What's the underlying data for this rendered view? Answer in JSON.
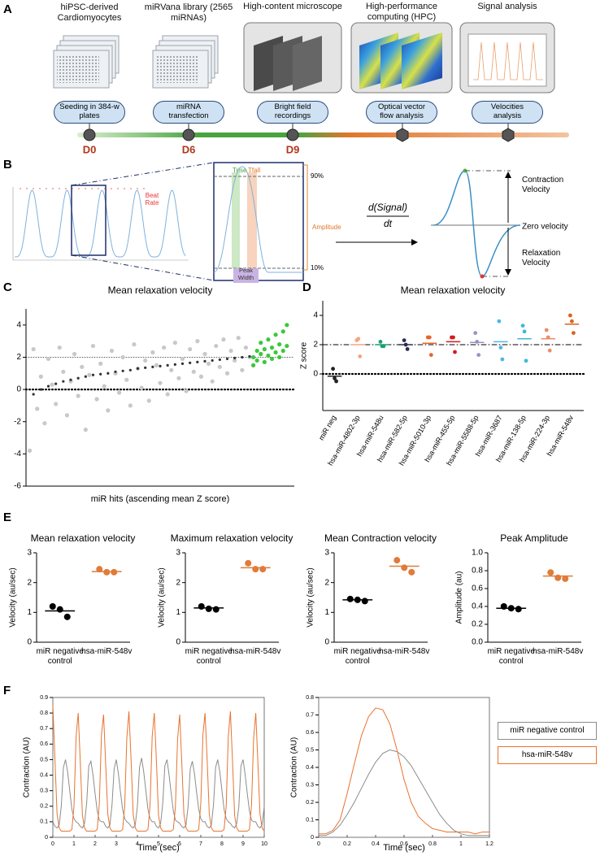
{
  "panel_a": {
    "label": "A",
    "steps": [
      "hiPSC-derived Cardiomyocytes",
      "miRVana library (2565 miRNAs)",
      "High-content microscope",
      "High-performance computing (HPC)",
      "Signal analysis"
    ],
    "actions": [
      "Seeding in 384-w plates",
      "miRNA transfection",
      "Bright field recordings",
      "Optical vector flow analysis",
      "Velocities analysis"
    ],
    "days": [
      "D0",
      "D6",
      "D9"
    ]
  },
  "panel_b": {
    "label": "B",
    "beat_rate": "Beat Rate",
    "trise": "Trise",
    "tfall": "Tfall",
    "upper_level": "90%",
    "lower_level": "10%",
    "amplitude": "Amplitude",
    "peak_width": "Peak Width",
    "derivative_numerator": "d(Signal)",
    "derivative_denominator": "dt",
    "contraction_velocity": "Contraction Velocity",
    "zero_velocity": "Zero velocity",
    "relaxation_velocity": "Relaxation Velocity"
  },
  "chart_data": [
    {
      "type": "scatter",
      "panel_label": "C",
      "title": "Mean relaxation velocity",
      "xlabel": "miR hits (ascending mean Z score)",
      "xlim": [
        0,
        72
      ],
      "ylim": [
        -6,
        5
      ],
      "yticks": [
        -6,
        -4,
        -2,
        0,
        2,
        4
      ],
      "hlines": [
        {
          "value": 0,
          "style": "dotted"
        },
        {
          "value": 2,
          "style": "fine-dotted"
        }
      ],
      "series": [
        {
          "color": "#c8c8c8",
          "x": [
            1,
            2,
            3,
            4,
            5,
            6,
            7,
            8,
            9,
            10,
            11,
            12,
            13,
            14,
            15,
            16,
            17,
            18,
            19,
            20,
            21,
            22,
            23,
            24,
            25,
            26,
            27,
            28,
            29,
            30,
            31,
            32,
            33,
            34,
            35,
            36,
            37,
            38,
            39,
            40,
            41,
            42,
            43,
            44,
            45,
            46,
            47,
            48,
            49,
            50,
            51,
            52,
            53,
            54,
            55,
            56,
            57,
            58,
            59,
            60
          ],
          "values": [
            -3.8,
            2.5,
            -1.2,
            0.8,
            -2.1,
            1.9,
            0.3,
            -0.9,
            2.6,
            1.1,
            -1.6,
            0.5,
            2.2,
            -0.4,
            1.4,
            -2.5,
            0.9,
            2.7,
            -0.6,
            1.6,
            0.2,
            -1.3,
            2.4,
            1.0,
            -0.2,
            2.0,
            0.6,
            -1.0,
            2.8,
            1.3,
            0.1,
            1.8,
            -0.7,
            2.3,
            1.5,
            0.4,
            2.6,
            -0.3,
            1.2,
            2.9,
            0.7,
            1.9,
            -0.1,
            2.5,
            1.1,
            3.0,
            0.8,
            2.2,
            1.6,
            0.5,
            2.7,
            1.4,
            3.1,
            1.0,
            2.4,
            1.8,
            3.2,
            1.2,
            2.6,
            2.0
          ]
        },
        {
          "color": "#333333",
          "x": [
            2,
            4,
            6,
            8,
            10,
            12,
            14,
            16,
            18,
            20,
            22,
            24,
            26,
            28,
            30,
            32,
            34,
            36,
            38,
            40,
            42,
            44,
            46,
            48,
            50,
            52,
            54,
            56,
            58,
            60
          ],
          "values": [
            -0.3,
            0.0,
            0.2,
            0.35,
            0.5,
            0.6,
            0.7,
            0.8,
            0.9,
            0.95,
            1.0,
            1.1,
            1.15,
            1.2,
            1.3,
            1.35,
            1.4,
            1.45,
            1.5,
            1.55,
            1.6,
            1.65,
            1.7,
            1.75,
            1.8,
            1.85,
            1.9,
            1.95,
            2.0,
            2.05
          ]
        },
        {
          "color": "#3cc83c",
          "x": [
            61,
            61,
            62,
            62,
            63,
            63,
            64,
            64,
            65,
            65,
            66,
            66,
            67,
            67,
            68,
            68,
            69,
            69,
            70,
            70
          ],
          "values": [
            2.0,
            1.5,
            2.4,
            1.8,
            2.2,
            2.9,
            1.7,
            2.5,
            2.1,
            3.1,
            2.6,
            1.9,
            2.3,
            3.4,
            2.8,
            2.0,
            3.6,
            2.4,
            4.0,
            2.7
          ]
        }
      ]
    },
    {
      "type": "strip",
      "panel_label": "D",
      "title": "Mean relaxation velocity",
      "ylabel": "Z score",
      "categories": [
        "miR neg",
        "hsa-miR-4802-3p",
        "hsa-miR-548u",
        "hsa-miR-582-5p",
        "hsa-miR-5010-3p",
        "hsa-miR-455-5p",
        "hsa-miR-5588-5p",
        "hsa-miR-3687",
        "hsa-miR-138-5p",
        "hsa-miR-224-3p",
        "hsa-miR-548v"
      ],
      "colors": [
        "#222222",
        "#f4a582",
        "#1b9e77",
        "#2c2c54",
        "#e8632b",
        "#d7191c",
        "#9e8fc4",
        "#4fb6e8",
        "#3fb8d8",
        "#f08a6a",
        "#d9631e"
      ],
      "values": [
        [
          0.35,
          -0.3,
          -0.5
        ],
        [
          2.3,
          2.4,
          1.2
        ],
        [
          2.2,
          1.9,
          1.9
        ],
        [
          2.3,
          2.0,
          1.7
        ],
        [
          2.5,
          2.5,
          1.3
        ],
        [
          2.5,
          2.5,
          1.5
        ],
        [
          2.8,
          2.2,
          1.3
        ],
        [
          3.6,
          1.8,
          1.0
        ],
        [
          3.3,
          2.9,
          0.9
        ],
        [
          3.0,
          2.5,
          1.6
        ],
        [
          4.0,
          3.6,
          2.8
        ]
      ],
      "means": [
        -0.15,
        2.0,
        2.0,
        2.0,
        2.1,
        2.2,
        2.15,
        2.2,
        2.4,
        2.4,
        3.4
      ],
      "ylim": [
        -2.5,
        5
      ],
      "yticks": [
        0,
        2,
        4
      ],
      "hlines": [
        {
          "value": 2,
          "style": "dash-dot"
        },
        {
          "value": 0,
          "style": "dotted"
        }
      ]
    },
    {
      "type": "strip",
      "panel_label": "E",
      "title": "Mean relaxation velocity",
      "ylabel": "Velocity (au/sec)",
      "categories": [
        "miR negative control",
        "hsa-miR-548v"
      ],
      "colors": [
        "#000000",
        "#e07b39"
      ],
      "values": [
        [
          1.2,
          1.1,
          0.85
        ],
        [
          2.45,
          2.35,
          2.35
        ]
      ],
      "means": [
        1.05,
        2.37
      ],
      "ylim": [
        0,
        3
      ],
      "yticks": [
        0,
        1,
        2,
        3
      ]
    },
    {
      "type": "strip",
      "title": "Maximum relaxation velocity",
      "ylabel": "Velocity (au/sec)",
      "categories": [
        "miR negative control",
        "hsa-miR-548v"
      ],
      "colors": [
        "#000000",
        "#e07b39"
      ],
      "values": [
        [
          1.2,
          1.12,
          1.1
        ],
        [
          2.65,
          2.45,
          2.45
        ]
      ],
      "means": [
        1.15,
        2.5
      ],
      "ylim": [
        0,
        3
      ],
      "yticks": [
        0,
        1,
        2,
        3
      ]
    },
    {
      "type": "strip",
      "title": "Mean Contraction velocity",
      "ylabel": "Velocity (au/sec)",
      "categories": [
        "miR negative control",
        "hsa-miR-548v"
      ],
      "colors": [
        "#000000",
        "#e07b39"
      ],
      "values": [
        [
          1.45,
          1.42,
          1.38
        ],
        [
          2.75,
          2.5,
          2.35
        ]
      ],
      "means": [
        1.42,
        2.55
      ],
      "ylim": [
        0,
        3
      ],
      "yticks": [
        0,
        1,
        2,
        3
      ]
    },
    {
      "type": "strip",
      "title": "Peak Amplitude",
      "ylabel": "Amplitude (au)",
      "categories": [
        "miR negative control",
        "hsa-miR-548v"
      ],
      "colors": [
        "#000000",
        "#e07b39"
      ],
      "values": [
        [
          0.4,
          0.38,
          0.37
        ],
        [
          0.78,
          0.72,
          0.71
        ]
      ],
      "means": [
        0.38,
        0.74
      ],
      "ylim": [
        0,
        1
      ],
      "yticks": [
        {
          "value": 0,
          "label": "0.0"
        },
        0.2,
        0.4,
        0.6,
        0.8,
        {
          "value": 1,
          "label": "1.0"
        }
      ]
    },
    {
      "type": "line",
      "panel_label": "F",
      "xlabel": "Time (sec)",
      "ylabel": "Contraction (AU)",
      "xlim": [
        0,
        10
      ],
      "ylim": [
        0,
        0.9
      ],
      "xticks": [
        0,
        1,
        2,
        3,
        4,
        5,
        6,
        7,
        8,
        9,
        10
      ],
      "yticks": [
        0,
        0.1,
        0.2,
        0.3,
        0.4,
        0.5,
        0.6,
        0.7,
        0.8,
        0.9
      ],
      "x": [
        0,
        0.1,
        0.2,
        0.3,
        0.4,
        0.5,
        0.6,
        0.7,
        0.8,
        0.9,
        1,
        1.1,
        1.2,
        1.3,
        1.4,
        1.5,
        1.6,
        1.7,
        1.8,
        1.9,
        2,
        2.1,
        2.2,
        2.3,
        2.4,
        2.5,
        2.6,
        2.7,
        2.8,
        2.9,
        3,
        3.1,
        3.2,
        3.3,
        3.4,
        3.5,
        3.6,
        3.7,
        3.8,
        3.9,
        4,
        4.1,
        4.2,
        4.3,
        4.4,
        4.5,
        4.6,
        4.7,
        4.8,
        4.9,
        5,
        5.1,
        5.2,
        5.3,
        5.4,
        5.5,
        5.6,
        5.7,
        5.8,
        5.9,
        6,
        6.1,
        6.2,
        6.3,
        6.4,
        6.5,
        6.6,
        6.7,
        6.8,
        6.9,
        7,
        7.1,
        7.2,
        7.3,
        7.4,
        7.5,
        7.6,
        7.7,
        7.8,
        7.9,
        8,
        8.1,
        8.2,
        8.3,
        8.4,
        8.5,
        8.6,
        8.7,
        8.8,
        8.9,
        9,
        9.1,
        9.2,
        9.3,
        9.4,
        9.5,
        9.6,
        9.7,
        9.8,
        9.9,
        10
      ],
      "series": [
        {
          "color": "#8c8c8c",
          "values": [
            0.1,
            0.07,
            0.06,
            0.08,
            0.2,
            0.45,
            0.5,
            0.42,
            0.3,
            0.18,
            0.12,
            0.1,
            0.09,
            0.07,
            0.06,
            0.09,
            0.22,
            0.46,
            0.49,
            0.4,
            0.28,
            0.17,
            0.11,
            0.1,
            0.1,
            0.07,
            0.06,
            0.08,
            0.21,
            0.44,
            0.5,
            0.41,
            0.29,
            0.18,
            0.12,
            0.1,
            0.09,
            0.07,
            0.06,
            0.08,
            0.2,
            0.45,
            0.51,
            0.42,
            0.3,
            0.18,
            0.12,
            0.1,
            0.1,
            0.07,
            0.06,
            0.09,
            0.22,
            0.46,
            0.5,
            0.4,
            0.28,
            0.17,
            0.11,
            0.1,
            0.09,
            0.07,
            0.06,
            0.08,
            0.2,
            0.44,
            0.49,
            0.41,
            0.29,
            0.18,
            0.12,
            0.1,
            0.1,
            0.07,
            0.06,
            0.08,
            0.21,
            0.45,
            0.5,
            0.42,
            0.3,
            0.18,
            0.12,
            0.1,
            0.09,
            0.07,
            0.06,
            0.09,
            0.2,
            0.46,
            0.5,
            0.4,
            0.28,
            0.17,
            0.11,
            0.1,
            0.1,
            0.07,
            0.06,
            0.08,
            0.2
          ]
        },
        {
          "color": "#e8732f",
          "values": [
            0.85,
            0.5,
            0.15,
            0.06,
            0.04,
            0.04,
            0.04,
            0.04,
            0.04,
            0.05,
            0.2,
            0.65,
            0.8,
            0.48,
            0.14,
            0.06,
            0.04,
            0.04,
            0.04,
            0.04,
            0.04,
            0.05,
            0.22,
            0.66,
            0.79,
            0.47,
            0.15,
            0.06,
            0.04,
            0.04,
            0.04,
            0.04,
            0.04,
            0.05,
            0.2,
            0.64,
            0.81,
            0.5,
            0.15,
            0.06,
            0.04,
            0.04,
            0.04,
            0.04,
            0.04,
            0.05,
            0.21,
            0.65,
            0.8,
            0.49,
            0.14,
            0.06,
            0.04,
            0.04,
            0.04,
            0.04,
            0.04,
            0.05,
            0.2,
            0.63,
            0.79,
            0.48,
            0.15,
            0.06,
            0.04,
            0.04,
            0.04,
            0.04,
            0.04,
            0.05,
            0.22,
            0.66,
            0.8,
            0.5,
            0.15,
            0.06,
            0.04,
            0.04,
            0.04,
            0.04,
            0.04,
            0.05,
            0.2,
            0.65,
            0.81,
            0.49,
            0.14,
            0.06,
            0.04,
            0.04,
            0.04,
            0.04,
            0.04,
            0.05,
            0.21,
            0.64,
            0.8,
            0.48,
            0.15,
            0.06,
            0.04
          ]
        }
      ]
    },
    {
      "type": "line",
      "xlabel": "Time (sec)",
      "ylabel": "Contraction (AU)",
      "legend": "outside-right",
      "xlim": [
        0,
        1.2
      ],
      "ylim": [
        0,
        0.8
      ],
      "xticks": [
        0,
        0.2,
        0.4,
        0.6,
        0.8,
        1,
        1.2
      ],
      "yticks": [
        0,
        0.1,
        0.2,
        0.3,
        0.4,
        0.5,
        0.6,
        0.7,
        0.8
      ],
      "x": [
        0,
        0.05,
        0.1,
        0.15,
        0.2,
        0.25,
        0.3,
        0.35,
        0.4,
        0.45,
        0.5,
        0.55,
        0.6,
        0.65,
        0.7,
        0.75,
        0.8,
        0.85,
        0.9,
        0.95,
        1,
        1.05,
        1.1,
        1.15,
        1.2
      ],
      "series": [
        {
          "name": "miR negative control",
          "color": "#8c8c8c",
          "values": [
            0.01,
            0.01,
            0.03,
            0.07,
            0.13,
            0.2,
            0.28,
            0.36,
            0.43,
            0.48,
            0.5,
            0.49,
            0.46,
            0.41,
            0.34,
            0.27,
            0.2,
            0.13,
            0.08,
            0.04,
            0.02,
            0.01,
            0.01,
            0.01,
            0.01
          ]
        },
        {
          "name": "hsa-miR-548v",
          "color": "#e8732f",
          "values": [
            0.02,
            0.02,
            0.04,
            0.1,
            0.25,
            0.42,
            0.58,
            0.69,
            0.74,
            0.73,
            0.65,
            0.5,
            0.33,
            0.2,
            0.12,
            0.08,
            0.05,
            0.04,
            0.03,
            0.03,
            0.03,
            0.03,
            0.02,
            0.03,
            0.03
          ]
        }
      ]
    }
  ]
}
